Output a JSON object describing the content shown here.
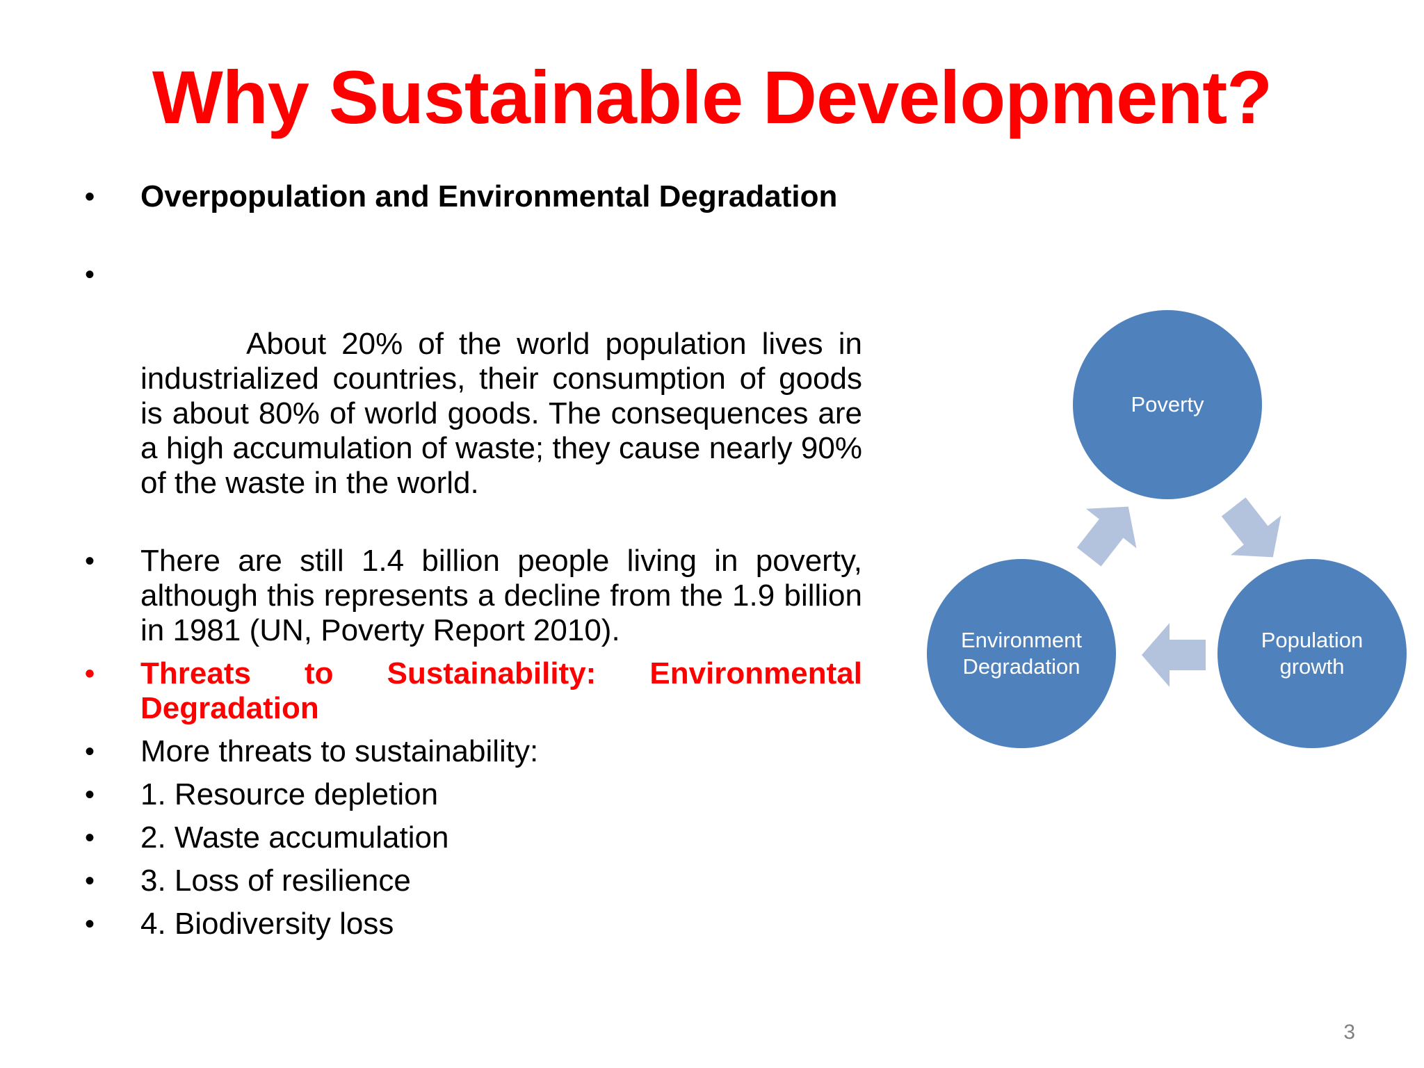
{
  "slide": {
    "title": "Why Sustainable Development?",
    "page_number": "3"
  },
  "bullets": [
    {
      "text": "Overpopulation and Environmental Degradation",
      "style": "bold"
    },
    {
      "text": " About 20% of the world population lives in industrialized countries, their consumption of goods is about 80% of world goods. The consequences are a high accumulation of waste; they cause nearly 90% of the waste in the world.",
      "style": "normal"
    },
    {
      "text": "There are still 1.4 billion people living in poverty, although this represents a decline from the 1.9 billion in 1981 (UN, Poverty Report 2010).",
      "style": "normal"
    },
    {
      "text": "Threats to Sustainability: Environmental Degradation",
      "style": "red-bold"
    },
    {
      "text": "More threats to sustainability:",
      "style": "normal"
    },
    {
      "text": "1. Resource depletion",
      "style": "normal"
    },
    {
      "text": "2. Waste accumulation",
      "style": "normal"
    },
    {
      "text": "3. Loss of resilience",
      "style": "normal"
    },
    {
      "text": "4. Biodiversity loss",
      "style": "normal"
    }
  ],
  "bullet_symbol": "•",
  "cycle_diagram": {
    "nodes": [
      {
        "label_line1": "Poverty",
        "label_line2": ""
      },
      {
        "label_line1": "Population",
        "label_line2": "growth"
      },
      {
        "label_line1": "Environment",
        "label_line2": "Degradation"
      }
    ],
    "node_color": "#4f81bd",
    "arrow_color": "#b4c3dd"
  },
  "colors": {
    "title": "#ff0000",
    "highlight": "#ff0000",
    "text": "#000000",
    "page_number": "#7f7f7f"
  }
}
